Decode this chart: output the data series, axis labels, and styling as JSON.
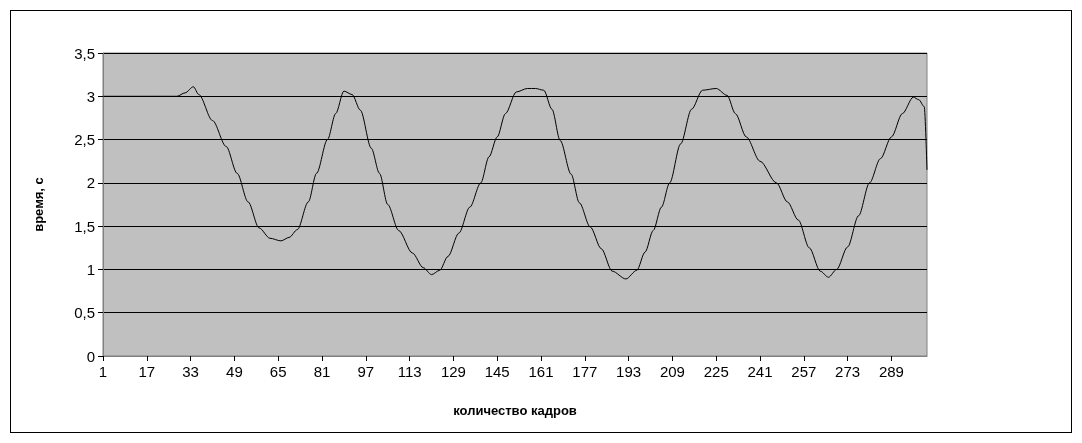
{
  "chart_data": {
    "type": "line",
    "xlabel": "количество кадров",
    "ylabel": "время, с",
    "series": [
      {
        "color": "#000000",
        "x": [
          1,
          10,
          20,
          28,
          31,
          34,
          36,
          41,
          46,
          50,
          54,
          58,
          62,
          66,
          69,
          72,
          76,
          79,
          83,
          86,
          89,
          92,
          95,
          99,
          102,
          105,
          109,
          114,
          118,
          121,
          124,
          127,
          131,
          135,
          139,
          142,
          145,
          148,
          152,
          156,
          159,
          162,
          165,
          168,
          172,
          175,
          179,
          183,
          187,
          192,
          196,
          199,
          202,
          205,
          208,
          212,
          216,
          220,
          225,
          229,
          232,
          236,
          241,
          247,
          251,
          255,
          259,
          263,
          266,
          269,
          273,
          277,
          281,
          285,
          289,
          293,
          297,
          299,
          301,
          302
        ],
        "values": [
          3,
          3,
          3,
          3,
          3.04,
          3.11,
          3.02,
          2.72,
          2.42,
          2.11,
          1.78,
          1.48,
          1.36,
          1.33,
          1.37,
          1.46,
          1.78,
          2.11,
          2.5,
          2.8,
          3.06,
          3.02,
          2.84,
          2.4,
          2.11,
          1.75,
          1.45,
          1.19,
          1.02,
          0.94,
          0.99,
          1.15,
          1.42,
          1.72,
          2.0,
          2.3,
          2.53,
          2.8,
          3.05,
          3.09,
          3.09,
          3.07,
          2.85,
          2.49,
          2.1,
          1.77,
          1.49,
          1.24,
          0.98,
          0.89,
          0.99,
          1.2,
          1.45,
          1.72,
          2.0,
          2.45,
          2.85,
          3.07,
          3.09,
          3.01,
          2.8,
          2.53,
          2.25,
          2.0,
          1.78,
          1.57,
          1.25,
          0.98,
          0.91,
          1.0,
          1.26,
          1.62,
          2.0,
          2.28,
          2.53,
          2.8,
          2.99,
          2.96,
          2.88,
          2.15
        ]
      }
    ],
    "xlim": [
      1,
      302
    ],
    "xticks": [
      1,
      17,
      33,
      49,
      65,
      81,
      97,
      113,
      129,
      145,
      161,
      177,
      193,
      209,
      225,
      241,
      257,
      273,
      289
    ],
    "ylim": [
      0,
      3.5
    ],
    "yticks": [
      0,
      {
        "value": 0.5,
        "label": "0,5"
      },
      1,
      {
        "value": 1.5,
        "label": "1,5"
      },
      2,
      {
        "value": 2.5,
        "label": "2,5"
      },
      3,
      {
        "value": 3.5,
        "label": "3,5"
      }
    ],
    "grid": "y",
    "marker": "none",
    "line_style": "solid"
  }
}
